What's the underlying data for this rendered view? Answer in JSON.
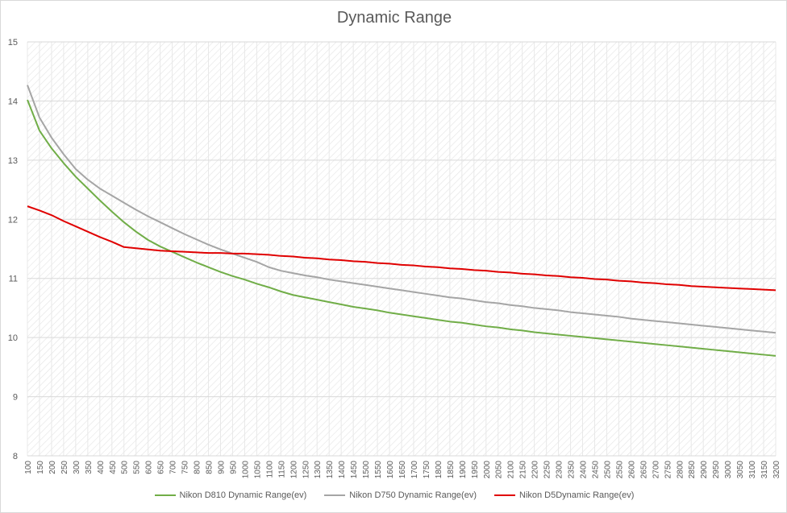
{
  "chart_data": {
    "type": "line",
    "title": "Dynamic Range",
    "xlabel": "",
    "ylabel": "",
    "ylim": [
      8,
      15
    ],
    "yticks": [
      "8",
      "9",
      "10",
      "11",
      "12",
      "13",
      "14",
      "15"
    ],
    "x": [
      100,
      150,
      200,
      250,
      300,
      350,
      400,
      450,
      500,
      550,
      600,
      650,
      700,
      750,
      800,
      850,
      900,
      950,
      1000,
      1050,
      1100,
      1150,
      1200,
      1250,
      1300,
      1350,
      1400,
      1450,
      1500,
      1550,
      1600,
      1650,
      1700,
      1750,
      1800,
      1850,
      1900,
      1950,
      2000,
      2050,
      2100,
      2150,
      2200,
      2250,
      2300,
      2350,
      2400,
      2450,
      2500,
      2550,
      2600,
      2650,
      2700,
      2750,
      2800,
      2850,
      2900,
      2950,
      3000,
      3050,
      3100,
      3150,
      3200
    ],
    "xticks": [
      "100",
      "150",
      "200",
      "250",
      "300",
      "350",
      "400",
      "450",
      "500",
      "550",
      "600",
      "650",
      "700",
      "750",
      "800",
      "850",
      "900",
      "950",
      "1000",
      "1050",
      "1100",
      "1150",
      "1200",
      "1250",
      "1300",
      "1350",
      "1400",
      "1450",
      "1500",
      "1550",
      "1600",
      "1650",
      "1700",
      "1750",
      "1800",
      "1850",
      "1900",
      "1950",
      "2000",
      "2050",
      "2100",
      "2150",
      "2200",
      "2250",
      "2300",
      "2350",
      "2400",
      "2450",
      "2500",
      "2550",
      "2600",
      "2650",
      "2700",
      "2750",
      "2800",
      "2850",
      "2900",
      "2950",
      "3000",
      "3050",
      "3100",
      "3150",
      "3200"
    ],
    "grid": true,
    "legend_position": "bottom",
    "series": [
      {
        "name": "Nikon D810 Dynamic Range(ev)",
        "color": "#70ad47",
        "values": [
          14.02,
          13.5,
          13.2,
          12.95,
          12.72,
          12.52,
          12.32,
          12.13,
          11.95,
          11.79,
          11.65,
          11.54,
          11.45,
          11.36,
          11.27,
          11.19,
          11.11,
          11.04,
          10.98,
          10.91,
          10.85,
          10.78,
          10.72,
          10.68,
          10.64,
          10.6,
          10.56,
          10.52,
          10.49,
          10.46,
          10.42,
          10.39,
          10.36,
          10.33,
          10.3,
          10.27,
          10.25,
          10.22,
          10.19,
          10.17,
          10.14,
          10.12,
          10.09,
          10.07,
          10.05,
          10.03,
          10.01,
          9.99,
          9.97,
          9.95,
          9.93,
          9.91,
          9.89,
          9.87,
          9.85,
          9.83,
          9.81,
          9.79,
          9.77,
          9.75,
          9.73,
          9.71,
          9.69
        ]
      },
      {
        "name": "Nikon D750 Dynamic Range(ev)",
        "color": "#a5a5a5",
        "values": [
          14.27,
          13.72,
          13.38,
          13.1,
          12.85,
          12.67,
          12.52,
          12.4,
          12.28,
          12.16,
          12.05,
          11.95,
          11.85,
          11.75,
          11.66,
          11.57,
          11.49,
          11.42,
          11.35,
          11.28,
          11.19,
          11.13,
          11.09,
          11.05,
          11.02,
          10.98,
          10.95,
          10.92,
          10.89,
          10.86,
          10.83,
          10.8,
          10.77,
          10.74,
          10.71,
          10.68,
          10.66,
          10.63,
          10.6,
          10.58,
          10.55,
          10.53,
          10.5,
          10.48,
          10.46,
          10.43,
          10.41,
          10.39,
          10.37,
          10.35,
          10.32,
          10.3,
          10.28,
          10.26,
          10.24,
          10.22,
          10.2,
          10.18,
          10.16,
          10.14,
          10.12,
          10.1,
          10.08
        ]
      },
      {
        "name": "Nikon D5Dynamic Range(ev)",
        "color": "#e00000",
        "values": [
          12.22,
          12.15,
          12.07,
          11.97,
          11.88,
          11.79,
          11.7,
          11.62,
          11.53,
          11.51,
          11.49,
          11.47,
          11.46,
          11.45,
          11.44,
          11.43,
          11.43,
          11.42,
          11.42,
          11.41,
          11.4,
          11.38,
          11.37,
          11.35,
          11.34,
          11.32,
          11.31,
          11.29,
          11.28,
          11.26,
          11.25,
          11.23,
          11.22,
          11.2,
          11.19,
          11.17,
          11.16,
          11.14,
          11.13,
          11.11,
          11.1,
          11.08,
          11.07,
          11.05,
          11.04,
          11.02,
          11.01,
          10.99,
          10.98,
          10.96,
          10.95,
          10.93,
          10.92,
          10.9,
          10.89,
          10.87,
          10.86,
          10.85,
          10.84,
          10.83,
          10.82,
          10.81,
          10.8
        ]
      }
    ]
  }
}
